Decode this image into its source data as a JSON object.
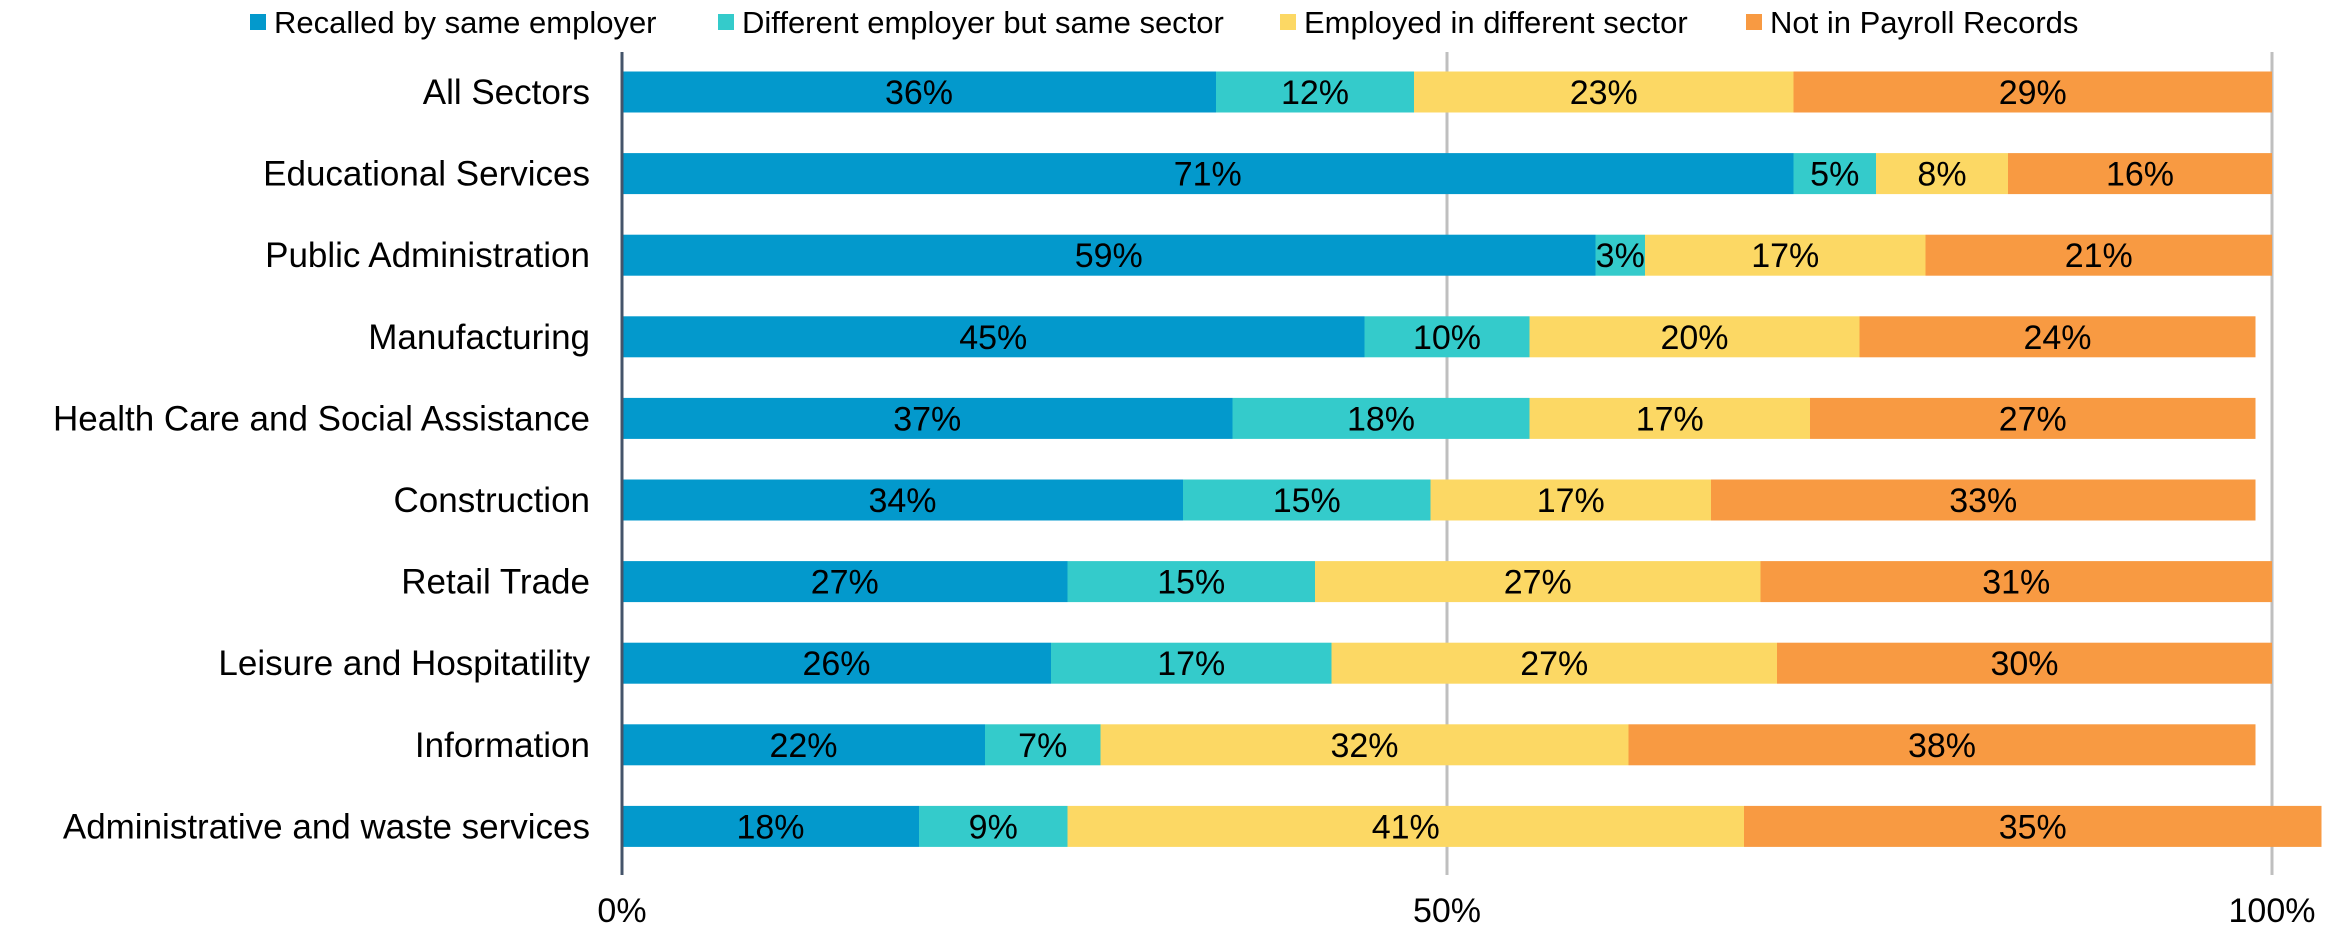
{
  "chart_data": {
    "type": "bar",
    "orientation": "horizontal",
    "stacked": true,
    "title": "",
    "xlabel": "",
    "ylabel": "",
    "xlim": [
      0,
      100
    ],
    "x_ticks": [
      {
        "value": 0,
        "label": "0%"
      },
      {
        "value": 50,
        "label": "50%"
      },
      {
        "value": 100,
        "label": "100%"
      }
    ],
    "grid": true,
    "legend_position": "top",
    "categories": [
      "All Sectors",
      "Educational Services",
      "Public Administration",
      "Manufacturing",
      "Health Care and Social Assistance",
      "Construction",
      "Retail Trade",
      "Leisure and Hospitatility",
      "Information",
      "Administrative and waste services"
    ],
    "series": [
      {
        "name": "Recalled by same employer",
        "color": "#0399CC",
        "values": [
          36,
          71,
          59,
          45,
          37,
          34,
          27,
          26,
          22,
          18
        ],
        "labels": [
          "36%",
          "71%",
          "59%",
          "45%",
          "37%",
          "34%",
          "27%",
          "26%",
          "22%",
          "18%"
        ]
      },
      {
        "name": "Different employer but same sector",
        "color": "#34CBCB",
        "values": [
          12,
          5,
          3,
          10,
          18,
          15,
          15,
          17,
          7,
          9
        ],
        "labels": [
          "12%",
          "5%",
          "3%",
          "10%",
          "18%",
          "15%",
          "15%",
          "17%",
          "7%",
          "9%"
        ]
      },
      {
        "name": "Employed in different sector",
        "color": "#FCD864",
        "values": [
          23,
          8,
          17,
          20,
          17,
          17,
          27,
          27,
          32,
          41
        ],
        "labels": [
          "23%",
          "8%",
          "17%",
          "20%",
          "17%",
          "17%",
          "27%",
          "27%",
          "32%",
          "41%"
        ]
      },
      {
        "name": "Not in Payroll Records",
        "color": "#F89A42",
        "values": [
          29,
          16,
          21,
          24,
          27,
          33,
          31,
          30,
          38,
          35
        ],
        "labels": [
          "29%",
          "16%",
          "21%",
          "24%",
          "27%",
          "33%",
          "31%",
          "30%",
          "38%",
          "35%"
        ]
      }
    ]
  }
}
